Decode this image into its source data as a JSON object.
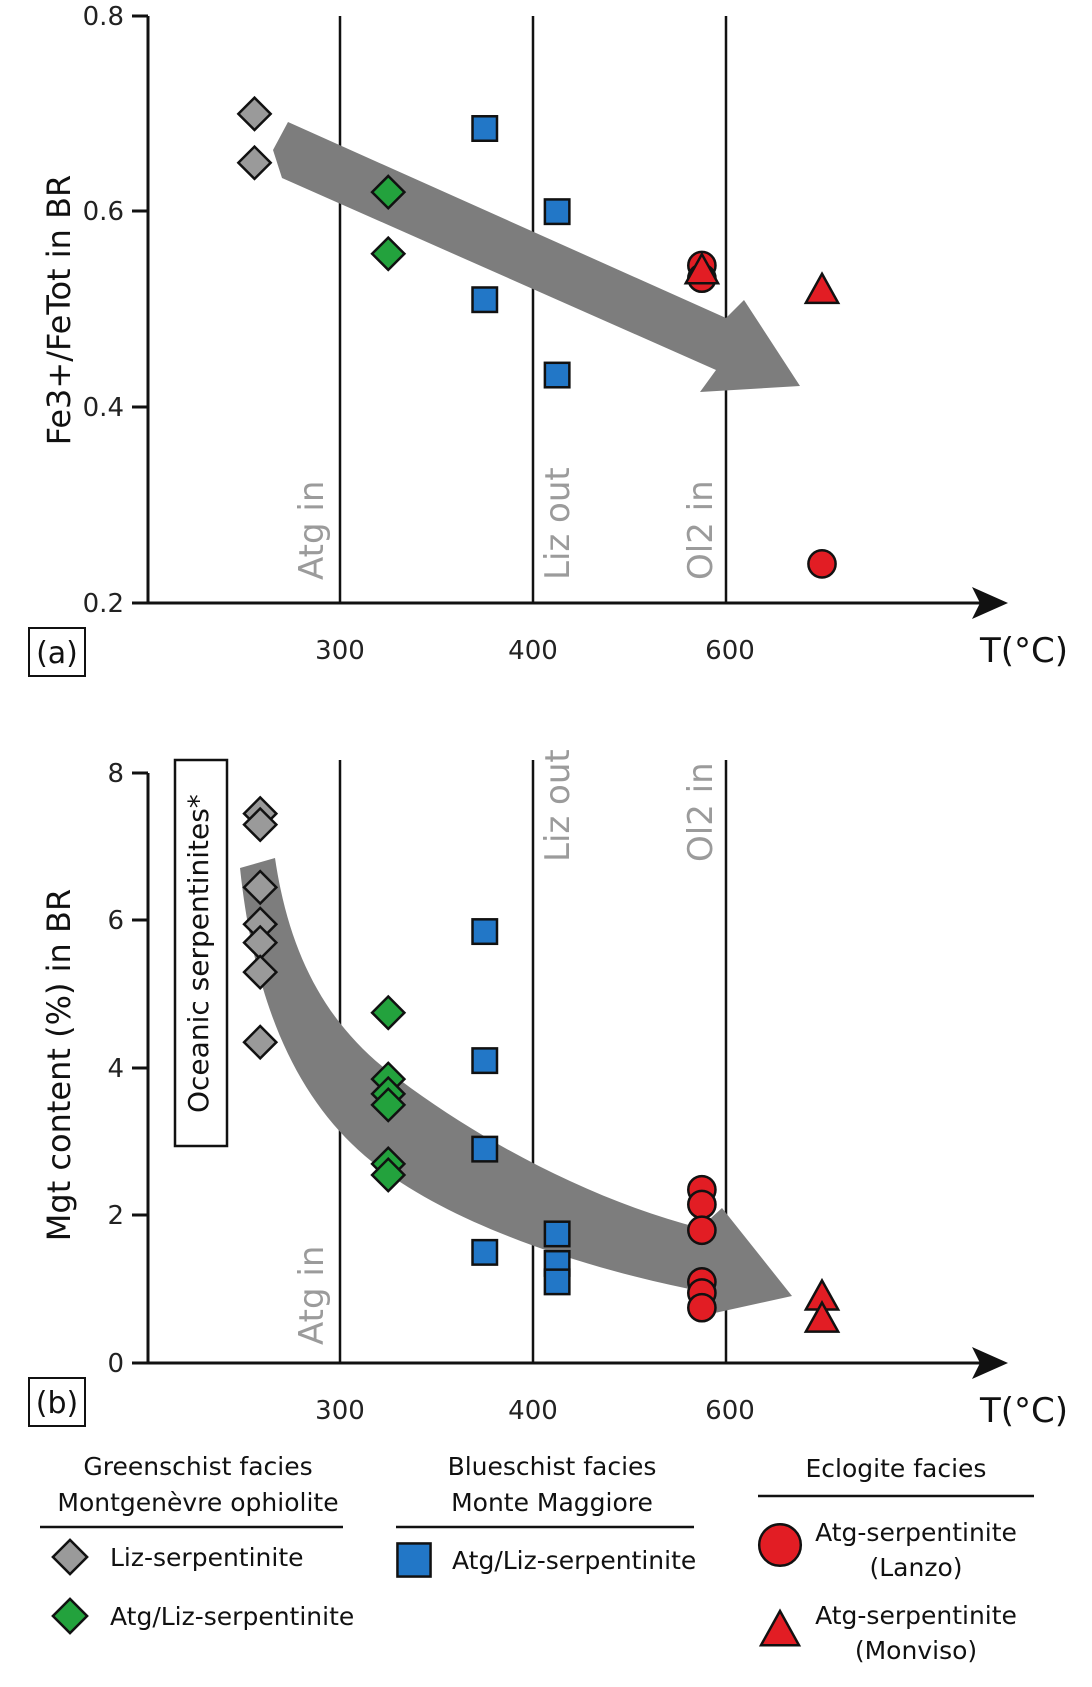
{
  "colors": {
    "liz_greenschist": "#9a9a9a",
    "atg_liz_greenschist": "#23a23d",
    "blueschist": "#2277c7",
    "eclogite": "#e21d24",
    "trend_arrow": "#7d7d7d",
    "threshold_label": "#9b9b9b"
  },
  "chart_data": [
    {
      "type": "scatter",
      "panel": "(a)",
      "ylabel": "Fe3+/FeTot in BR",
      "xlabel": "T(°C)",
      "x_ticks": [
        "300",
        "400",
        "600"
      ],
      "y_ticks": [
        "0.2",
        "0.4",
        "0.6",
        "0.8"
      ],
      "ylim": [
        0.2,
        0.8
      ],
      "x_note": "categorical temperature axis (non-linear)",
      "thresholds": [
        {
          "x": "300",
          "label": "Atg in"
        },
        {
          "x": "400",
          "label": "Liz out"
        },
        {
          "x": "600",
          "label": "Ol2 in"
        }
      ],
      "trend": "decreasing (grey arrow)",
      "series": [
        {
          "group": "greenschist-liz",
          "marker": "diamond",
          "points": [
            [
              255,
              0.7
            ],
            [
              255,
              0.65
            ]
          ]
        },
        {
          "group": "greenschist-atg-liz",
          "marker": "diamond",
          "points": [
            [
              325,
              0.62
            ],
            [
              325,
              0.557
            ]
          ]
        },
        {
          "group": "blueschist",
          "marker": "square",
          "points": [
            [
              375,
              0.685
            ],
            [
              375,
              0.51
            ],
            [
              425,
              0.6
            ],
            [
              425,
              0.433
            ]
          ]
        },
        {
          "group": "eclogite-lanzo",
          "marker": "circle",
          "points": [
            [
              575,
              0.545
            ],
            [
              575,
              0.532
            ],
            [
              650,
              0.24
            ]
          ]
        },
        {
          "group": "eclogite-monviso",
          "marker": "triangle",
          "points": [
            [
              575,
              0.54
            ],
            [
              650,
              0.52
            ]
          ]
        }
      ]
    },
    {
      "type": "scatter",
      "panel": "(b)",
      "ylabel": "Mgt content (%) in BR",
      "xlabel": "T(°C)",
      "x_ticks": [
        "300",
        "400",
        "600"
      ],
      "y_ticks": [
        "0",
        "2",
        "4",
        "6",
        "8"
      ],
      "ylim": [
        0,
        8
      ],
      "x_note": "categorical temperature axis (non-linear)",
      "thresholds": [
        {
          "x": "300",
          "label": "Atg in"
        },
        {
          "x": "400",
          "label": "Liz out"
        },
        {
          "x": "600",
          "label": "Ol2 in"
        }
      ],
      "box_label": "Oceanic serpentinites*",
      "box_range": [
        2.9,
        8
      ],
      "trend": "decreasing (grey arrow)",
      "series": [
        {
          "group": "greenschist-liz",
          "marker": "diamond",
          "points": [
            [
              258,
              7.45
            ],
            [
              258,
              7.3
            ],
            [
              258,
              6.45
            ],
            [
              258,
              5.95
            ],
            [
              258,
              5.7
            ],
            [
              258,
              5.3
            ],
            [
              258,
              4.35
            ]
          ]
        },
        {
          "group": "greenschist-atg-liz",
          "marker": "diamond",
          "points": [
            [
              325,
              4.75
            ],
            [
              325,
              3.85
            ],
            [
              325,
              3.65
            ],
            [
              325,
              3.5
            ],
            [
              325,
              2.7
            ],
            [
              325,
              2.55
            ]
          ]
        },
        {
          "group": "blueschist",
          "marker": "square",
          "points": [
            [
              375,
              5.85
            ],
            [
              375,
              4.1
            ],
            [
              375,
              2.9
            ],
            [
              375,
              1.5
            ],
            [
              425,
              1.75
            ],
            [
              425,
              1.35
            ],
            [
              425,
              1.1
            ]
          ]
        },
        {
          "group": "eclogite-lanzo",
          "marker": "circle",
          "points": [
            [
              575,
              2.35
            ],
            [
              575,
              2.15
            ],
            [
              575,
              1.8
            ],
            [
              575,
              1.1
            ],
            [
              575,
              0.95
            ],
            [
              575,
              0.75
            ]
          ]
        },
        {
          "group": "eclogite-monviso",
          "marker": "triangle",
          "points": [
            [
              650,
              0.9
            ],
            [
              650,
              0.6
            ]
          ]
        }
      ]
    }
  ],
  "legend": {
    "greenschist": {
      "heading1": "Greenschist facies",
      "heading2": "Montgenèvre ophiolite",
      "items": [
        {
          "group": "greenschist-liz",
          "marker": "diamond",
          "label": "Liz-serpentinite"
        },
        {
          "group": "greenschist-atg-liz",
          "marker": "diamond",
          "label": "Atg/Liz-serpentinite"
        }
      ]
    },
    "blueschist": {
      "heading1": "Blueschist facies",
      "heading2": "Monte Maggiore",
      "items": [
        {
          "group": "blueschist",
          "marker": "square",
          "label": "Atg/Liz-serpentinite"
        }
      ]
    },
    "eclogite": {
      "heading1": "Eclogite facies",
      "items": [
        {
          "group": "eclogite-lanzo",
          "marker": "circle",
          "label": "Atg-serpentinite",
          "sub": "(Lanzo)"
        },
        {
          "group": "eclogite-monviso",
          "marker": "triangle",
          "label": "Atg-serpentinite",
          "sub": "(Monviso)"
        }
      ]
    }
  }
}
